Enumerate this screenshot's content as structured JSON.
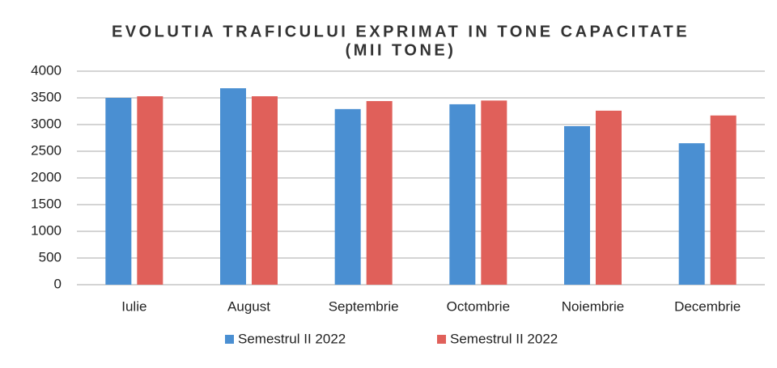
{
  "chart_data": {
    "type": "bar",
    "title": "EVOLUTIA TRAFICULUI EXPRIMAT IN TONE CAPACITATE",
    "subtitle": "(MII TONE)",
    "categories": [
      "Iulie",
      "August",
      "Septembrie",
      "Octombrie",
      "Noiembrie",
      "Decembrie"
    ],
    "series": [
      {
        "name": "Semestrul II 2022",
        "color": "#4a8fd2",
        "values": [
          3500,
          3680,
          3290,
          3380,
          2970,
          2650
        ]
      },
      {
        "name": "Semestrul II 2022",
        "color": "#e0605a",
        "values": [
          3530,
          3530,
          3440,
          3450,
          3260,
          3170
        ]
      }
    ],
    "ylim": [
      0,
      4000
    ],
    "yticks": [
      0,
      500,
      1000,
      1500,
      2000,
      2500,
      3000,
      3500,
      4000
    ],
    "grid": true,
    "legend": "bottom"
  }
}
